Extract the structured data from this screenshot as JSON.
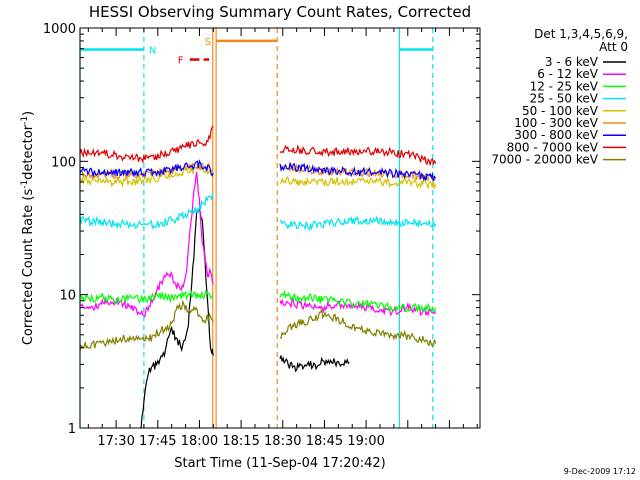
{
  "chart_data": {
    "type": "line",
    "title": "HESSI Observing Summary Count Rates, Corrected",
    "xlabel": "Start Time (11-Sep-04 17:20:42)",
    "ylabel": "Corrected Count Rate (s",
    "ylabel_unit": "detector",
    "ylabel_sup": "-1",
    "y_scale": "log",
    "xlim_minutes": [
      17.0,
      161.0
    ],
    "ylim": [
      1,
      1000
    ],
    "x_ticks": [
      "17:30",
      "17:45",
      "18:00",
      "18:15",
      "18:30",
      "18:45",
      "19:00"
    ],
    "x_tick_minutes": [
      30,
      45,
      60,
      75,
      90,
      105,
      120
    ],
    "y_ticks": [
      "1",
      "10",
      "100",
      "1000"
    ],
    "y_tick_values": [
      1,
      10,
      100,
      1000
    ],
    "legend_header": [
      "Det 1,3,4,5,6,9,",
      "Att 0"
    ],
    "legend_position": "right",
    "date_stamp": "9-Dec-2009 17:12",
    "annotations": [
      {
        "label": "N",
        "color": "#00e5ee",
        "x_start": 17.0,
        "x_end": 40.0,
        "dash_lines": [
          40.0,
          144.0
        ],
        "solid_lines": [
          17.0,
          132.0
        ],
        "bar_segments": [
          [
            17.0,
            40.0
          ],
          [
            132.0,
            144.0
          ]
        ],
        "y": 690
      },
      {
        "label": "S",
        "color": "#f08a1c",
        "x_start": 64.8,
        "x_end": 88.0,
        "solid_lines": [
          64.8,
          66.0
        ],
        "dash_lines": [
          88.0
        ],
        "bar_segments": [
          [
            66.0,
            88.0
          ]
        ],
        "y": 800
      },
      {
        "label": "F",
        "color": "#e00000",
        "bar_segments": [
          [
            56.5,
            60.0
          ],
          [
            61.5,
            63.5
          ]
        ],
        "y": 580
      }
    ],
    "gaps": [
      [
        66.0,
        88.0
      ]
    ],
    "series": [
      {
        "name": "3 - 6 keV",
        "color": "#000000",
        "points": [
          [
            39,
            1
          ],
          [
            40,
            1.6
          ],
          [
            42,
            2.8
          ],
          [
            45,
            3.0
          ],
          [
            47,
            3.5
          ],
          [
            50,
            5.5
          ],
          [
            52,
            4.5
          ],
          [
            54,
            4.0
          ],
          [
            56,
            6
          ],
          [
            58,
            20
          ],
          [
            59,
            40
          ],
          [
            60,
            46
          ],
          [
            61,
            35
          ],
          [
            62,
            18
          ],
          [
            63,
            8
          ],
          [
            64,
            4
          ],
          [
            65,
            3.5
          ],
          [
            89,
            3.5
          ],
          [
            92,
            3.0
          ],
          [
            95,
            2.8
          ],
          [
            98,
            3.0
          ],
          [
            100,
            3.0
          ],
          [
            102,
            2.9
          ],
          [
            104,
            3.2
          ],
          [
            106,
            3.0
          ],
          [
            108,
            3.2
          ],
          [
            110,
            3.0
          ],
          [
            112,
            3.0
          ],
          [
            114,
            3.1
          ]
        ]
      },
      {
        "name": "6 - 12 keV",
        "color": "#ff00ff",
        "points": [
          [
            17,
            8.5
          ],
          [
            20,
            8
          ],
          [
            25,
            8.5
          ],
          [
            30,
            9
          ],
          [
            35,
            8
          ],
          [
            40,
            7
          ],
          [
            43,
            9
          ],
          [
            45,
            11
          ],
          [
            47,
            13
          ],
          [
            49,
            15
          ],
          [
            51,
            12
          ],
          [
            53,
            11
          ],
          [
            55,
            13
          ],
          [
            57,
            35
          ],
          [
            58,
            60
          ],
          [
            59,
            80
          ],
          [
            60,
            50
          ],
          [
            61,
            25
          ],
          [
            62,
            18
          ],
          [
            63,
            14
          ],
          [
            64,
            15
          ],
          [
            65,
            12
          ],
          [
            89,
            9
          ],
          [
            95,
            8.5
          ],
          [
            100,
            8
          ],
          [
            105,
            8
          ],
          [
            110,
            8.5
          ],
          [
            115,
            8
          ],
          [
            120,
            8
          ],
          [
            125,
            7.5
          ],
          [
            130,
            7.5
          ],
          [
            135,
            8
          ],
          [
            140,
            7.5
          ],
          [
            145,
            7.5
          ]
        ]
      },
      {
        "name": "12 - 25 keV",
        "color": "#00ff00",
        "points": [
          [
            17,
            9.5
          ],
          [
            20,
            9.2
          ],
          [
            25,
            9.5
          ],
          [
            30,
            9
          ],
          [
            35,
            9.5
          ],
          [
            40,
            9.2
          ],
          [
            45,
            9.8
          ],
          [
            50,
            9.5
          ],
          [
            55,
            10
          ],
          [
            60,
            10
          ],
          [
            65,
            10
          ],
          [
            89,
            10
          ],
          [
            95,
            9.5
          ],
          [
            100,
            9.5
          ],
          [
            105,
            9
          ],
          [
            110,
            9
          ],
          [
            115,
            8.5
          ],
          [
            120,
            8.5
          ],
          [
            125,
            8.2
          ],
          [
            130,
            8
          ],
          [
            135,
            8
          ],
          [
            140,
            8
          ],
          [
            145,
            8
          ]
        ]
      },
      {
        "name": "25 - 50 keV",
        "color": "#00e5ee",
        "points": [
          [
            17,
            36
          ],
          [
            25,
            35
          ],
          [
            30,
            34
          ],
          [
            35,
            34
          ],
          [
            40,
            33
          ],
          [
            45,
            34
          ],
          [
            50,
            36
          ],
          [
            55,
            40
          ],
          [
            58,
            42
          ],
          [
            60,
            45
          ],
          [
            62,
            50
          ],
          [
            64,
            55
          ],
          [
            65,
            58
          ],
          [
            89,
            34
          ],
          [
            95,
            33
          ],
          [
            100,
            33
          ],
          [
            105,
            34
          ],
          [
            110,
            35
          ],
          [
            115,
            36
          ],
          [
            120,
            36
          ],
          [
            125,
            36
          ],
          [
            130,
            35
          ],
          [
            135,
            35
          ],
          [
            140,
            34
          ],
          [
            145,
            34
          ]
        ]
      },
      {
        "name": "50 - 100 keV",
        "color": "#d4c000",
        "points": [
          [
            17,
            72
          ],
          [
            25,
            71
          ],
          [
            30,
            70
          ],
          [
            35,
            70
          ],
          [
            40,
            72
          ],
          [
            45,
            75
          ],
          [
            50,
            80
          ],
          [
            55,
            85
          ],
          [
            60,
            88
          ],
          [
            63,
            85
          ],
          [
            65,
            82
          ],
          [
            89,
            72
          ],
          [
            95,
            70
          ],
          [
            100,
            70
          ],
          [
            105,
            70
          ],
          [
            110,
            71
          ],
          [
            115,
            71
          ],
          [
            120,
            71
          ],
          [
            125,
            70
          ],
          [
            130,
            69
          ],
          [
            135,
            69
          ],
          [
            140,
            68
          ],
          [
            145,
            67
          ]
        ]
      },
      {
        "name": "100 - 300 keV",
        "color": "#f08a1c",
        "points": [
          [
            17,
            82
          ],
          [
            25,
            80
          ],
          [
            30,
            80
          ],
          [
            35,
            79
          ],
          [
            40,
            80
          ],
          [
            45,
            82
          ],
          [
            50,
            86
          ],
          [
            55,
            90
          ],
          [
            60,
            92
          ],
          [
            63,
            92
          ],
          [
            65,
            88
          ],
          [
            89,
            90
          ],
          [
            95,
            88
          ],
          [
            100,
            86
          ],
          [
            105,
            84
          ],
          [
            110,
            83
          ],
          [
            115,
            82
          ],
          [
            120,
            82
          ],
          [
            125,
            81
          ],
          [
            130,
            80
          ],
          [
            135,
            79
          ],
          [
            140,
            77
          ],
          [
            145,
            74
          ]
        ]
      },
      {
        "name": "300 - 800 keV",
        "color": "#0000ff",
        "points": [
          [
            17,
            84
          ],
          [
            25,
            83
          ],
          [
            30,
            83
          ],
          [
            35,
            83
          ],
          [
            40,
            82
          ],
          [
            45,
            84
          ],
          [
            50,
            88
          ],
          [
            55,
            92
          ],
          [
            60,
            94
          ],
          [
            63,
            88
          ],
          [
            65,
            82
          ],
          [
            89,
            92
          ],
          [
            95,
            90
          ],
          [
            100,
            88
          ],
          [
            105,
            86
          ],
          [
            110,
            84
          ],
          [
            115,
            83
          ],
          [
            120,
            83
          ],
          [
            125,
            82
          ],
          [
            130,
            81
          ],
          [
            135,
            80
          ],
          [
            140,
            78
          ],
          [
            145,
            75
          ]
        ]
      },
      {
        "name": "800 - 7000 keV",
        "color": "#e00000",
        "points": [
          [
            17,
            118
          ],
          [
            25,
            115
          ],
          [
            30,
            110
          ],
          [
            35,
            106
          ],
          [
            40,
            105
          ],
          [
            45,
            110
          ],
          [
            50,
            118
          ],
          [
            55,
            130
          ],
          [
            60,
            135
          ],
          [
            63,
            140
          ],
          [
            65,
            185
          ],
          [
            89,
            125
          ],
          [
            95,
            122
          ],
          [
            100,
            120
          ],
          [
            105,
            118
          ],
          [
            110,
            118
          ],
          [
            115,
            120
          ],
          [
            120,
            120
          ],
          [
            125,
            118
          ],
          [
            130,
            116
          ],
          [
            135,
            112
          ],
          [
            140,
            105
          ],
          [
            145,
            96
          ]
        ]
      },
      {
        "name": "7000 - 20000 keV",
        "color": "#808000",
        "points": [
          [
            17,
            4.0
          ],
          [
            20,
            4.2
          ],
          [
            25,
            4.3
          ],
          [
            30,
            4.5
          ],
          [
            35,
            4.8
          ],
          [
            40,
            4.5
          ],
          [
            43,
            4.8
          ],
          [
            45,
            5.2
          ],
          [
            47,
            5.5
          ],
          [
            50,
            6.0
          ],
          [
            52,
            8.0
          ],
          [
            54,
            8.5
          ],
          [
            56,
            7.5
          ],
          [
            58,
            7.8
          ],
          [
            60,
            7.0
          ],
          [
            62,
            6.5
          ],
          [
            64,
            6.8
          ],
          [
            65,
            6.2
          ],
          [
            89,
            5.0
          ],
          [
            92,
            5.5
          ],
          [
            95,
            6.0
          ],
          [
            98,
            6.2
          ],
          [
            100,
            6.5
          ],
          [
            102,
            6.8
          ],
          [
            104,
            7.2
          ],
          [
            106,
            7.0
          ],
          [
            108,
            6.8
          ],
          [
            110,
            6.5
          ],
          [
            112,
            6.2
          ],
          [
            114,
            6.0
          ],
          [
            116,
            5.8
          ],
          [
            118,
            5.5
          ],
          [
            120,
            5.4
          ],
          [
            125,
            5.2
          ],
          [
            130,
            5.0
          ],
          [
            135,
            4.9
          ],
          [
            140,
            4.6
          ],
          [
            145,
            4.3
          ]
        ]
      }
    ]
  }
}
